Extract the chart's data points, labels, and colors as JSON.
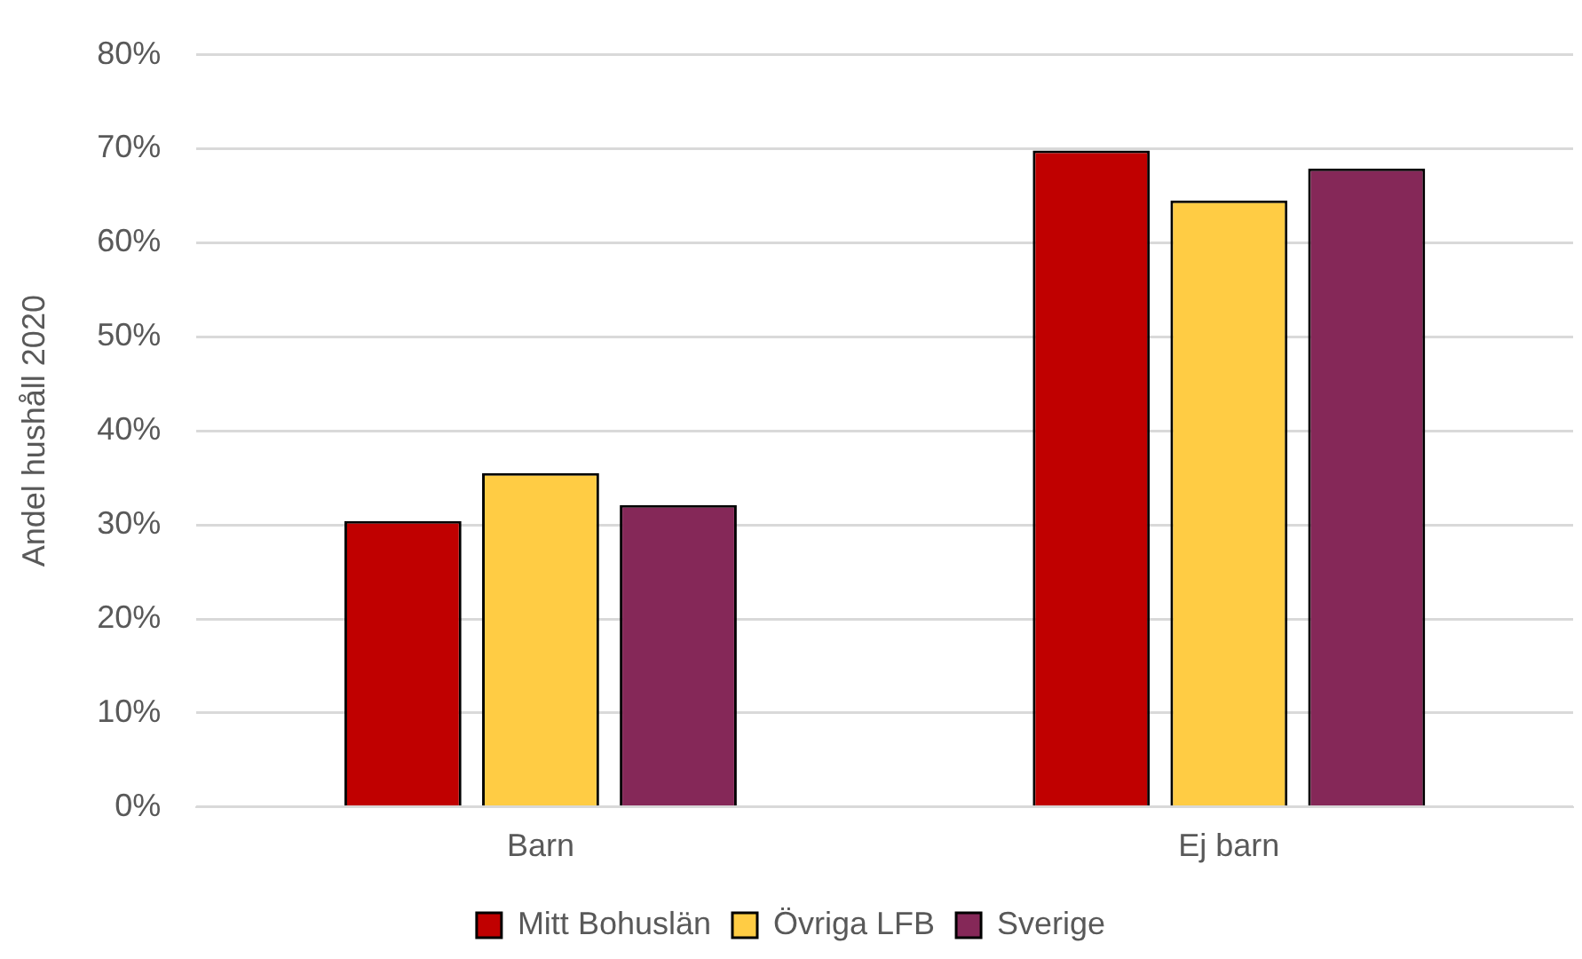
{
  "chart_data": {
    "type": "bar",
    "ylabel": "Andel hushåll 2020",
    "categories": [
      "Barn",
      "Ej barn"
    ],
    "series": [
      {
        "name": "Mitt Bohuslän",
        "color": "#c00000",
        "values": [
          30.4,
          69.8
        ]
      },
      {
        "name": "Övriga LFB",
        "color": "#ffcc44",
        "values": [
          35.5,
          64.5
        ]
      },
      {
        "name": "Sverige",
        "color": "#852858",
        "values": [
          32.1,
          67.9
        ]
      }
    ],
    "ylim": [
      0,
      80
    ],
    "yticks": [
      {
        "value": 0,
        "label": "0%"
      },
      {
        "value": 10,
        "label": "10%"
      },
      {
        "value": 20,
        "label": "20%"
      },
      {
        "value": 30,
        "label": "30%"
      },
      {
        "value": 40,
        "label": "40%"
      },
      {
        "value": 50,
        "label": "50%"
      },
      {
        "value": 60,
        "label": "60%"
      },
      {
        "value": 70,
        "label": "70%"
      },
      {
        "value": 80,
        "label": "80%"
      }
    ],
    "grid": "y",
    "legend": "bottom"
  }
}
